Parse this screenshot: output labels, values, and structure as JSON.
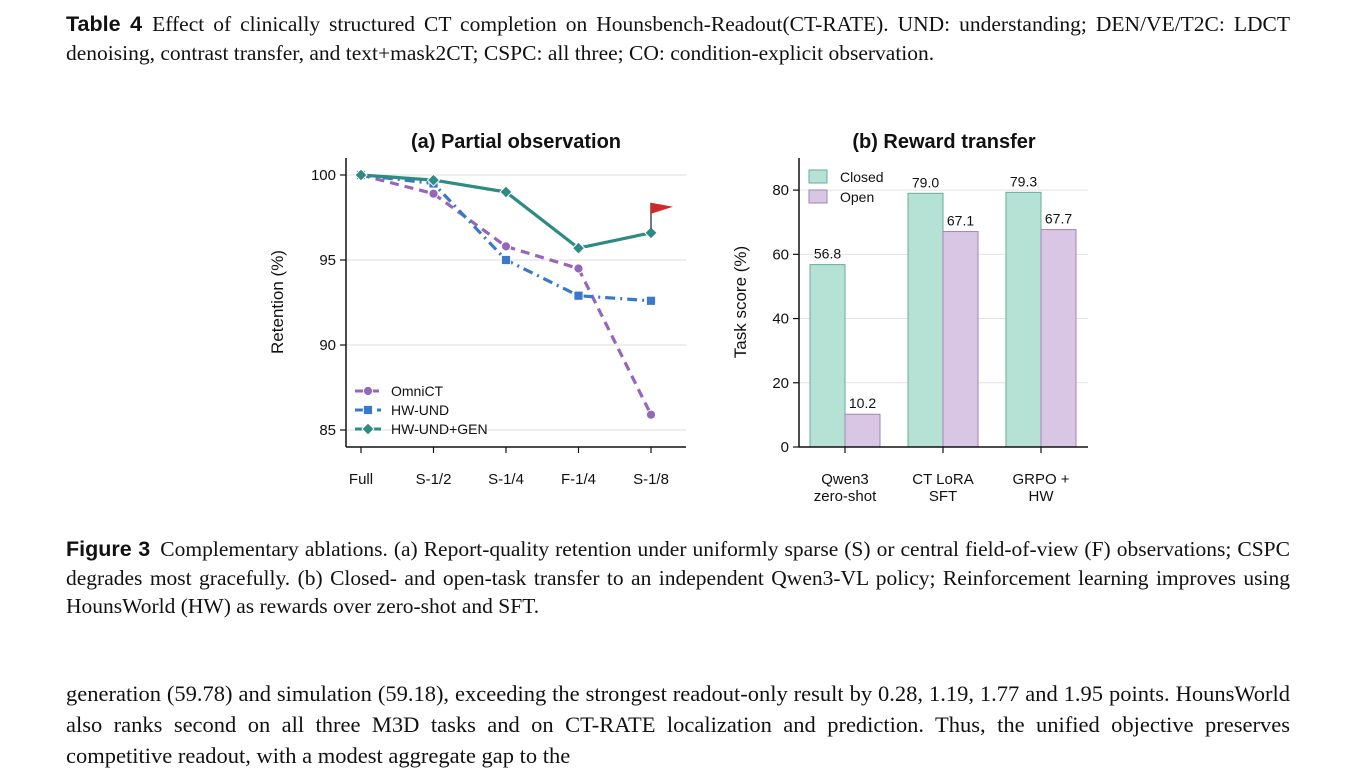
{
  "table_caption": {
    "label": "Table 4",
    "text": "Effect of clinically structured CT completion on Hounsbench-Readout(CT-RATE). UND: understanding; DEN/VE/T2C: LDCT denoising, contrast transfer, and text+mask2CT; CSPC: all three; CO: condition-explicit observation."
  },
  "figure_caption": {
    "label": "Figure 3",
    "text": "Complementary ablations. (a) Report-quality retention under uniformly sparse (S) or central field-of-view (F) observations; CSPC degrades most gracefully. (b) Closed- and open-task transfer to an independent Qwen3-VL policy; Reinforcement learning improves using HounsWorld (HW) as rewards over zero-shot and SFT."
  },
  "body_text": "generation (59.78) and simulation (59.18), exceeding the strongest readout-only result by 0.28, 1.19, 1.77 and 1.95 points. HounsWorld also ranks second on all three M3D tasks and on CT-RATE localization and prediction. Thus, the unified objective preserves competitive readout, with a modest aggregate gap to the",
  "chart_data": [
    {
      "type": "line",
      "title": "(a) Partial observation",
      "xlabel": "",
      "ylabel": "Retention (%)",
      "categories": [
        "Full",
        "S-1/2",
        "S-1/4",
        "F-1/4",
        "S-1/8"
      ],
      "ylim": [
        84,
        101
      ],
      "yticks": [
        85,
        90,
        95,
        100
      ],
      "grid": true,
      "legend": "bottom-left",
      "flag_marker_on": "HW-UND+GEN",
      "series": [
        {
          "name": "OmniCT",
          "values": [
            100.0,
            98.9,
            95.8,
            94.5,
            85.9
          ],
          "color": "#9467bd",
          "marker": "circle",
          "dash": "dashed"
        },
        {
          "name": "HW-UND",
          "values": [
            100.0,
            99.5,
            95.0,
            92.9,
            92.6
          ],
          "color": "#3a78c9",
          "marker": "square",
          "dash": "dashdot"
        },
        {
          "name": "HW-UND+GEN",
          "values": [
            100.0,
            99.7,
            99.0,
            95.7,
            96.6
          ],
          "color": "#2e8b84",
          "marker": "diamond",
          "dash": "solid"
        }
      ]
    },
    {
      "type": "bar",
      "title": "(b) Reward transfer",
      "xlabel": "",
      "ylabel": "Task score (%)",
      "categories": [
        "Qwen3\nzero-shot",
        "CT LoRA\nSFT",
        "GRPO +\nHW"
      ],
      "ylim": [
        0,
        90
      ],
      "yticks": [
        0,
        20,
        40,
        60,
        80
      ],
      "grid": true,
      "legend": "top-left",
      "series": [
        {
          "name": "Closed",
          "values": [
            56.8,
            79.0,
            79.3
          ],
          "labels": [
            "56.8",
            "79.0",
            "79.3"
          ],
          "color": "#b5e2d4",
          "edge": "#6aa99a"
        },
        {
          "name": "Open",
          "values": [
            10.2,
            67.1,
            67.7
          ],
          "labels": [
            "10.2",
            "67.1",
            "67.7"
          ],
          "color": "#d9c6e4",
          "edge": "#9e86b4"
        }
      ]
    }
  ]
}
